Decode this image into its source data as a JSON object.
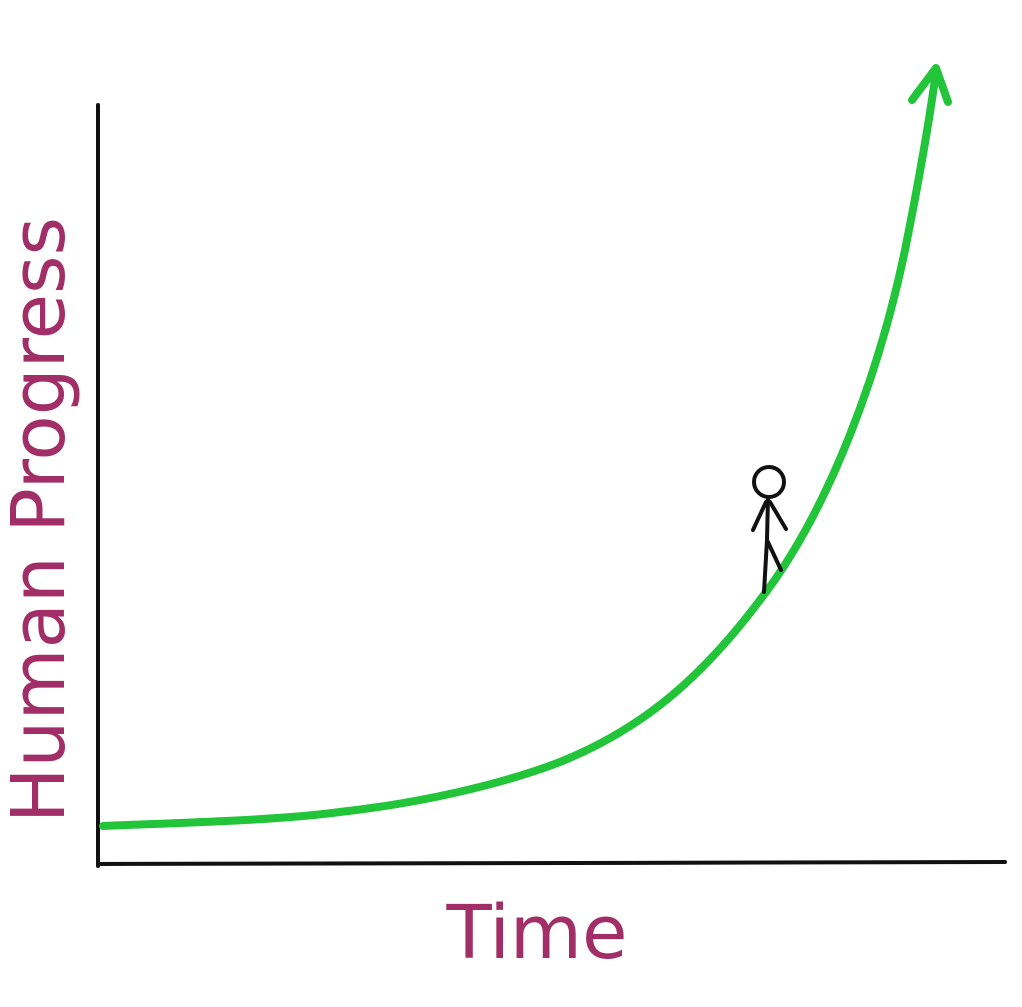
{
  "labels": {
    "x_axis": "Time",
    "y_axis": "Human Progress"
  },
  "colors": {
    "axis": "#111111",
    "curve": "#22c43a",
    "label": "#a12e66",
    "figure": "#111111"
  },
  "icons": {
    "curve_end": "arrowhead-up",
    "figure": "stick-figure"
  },
  "chart_data": {
    "type": "line",
    "title": "",
    "xlabel": "Time",
    "ylabel": "Human Progress",
    "shape": "exponential",
    "tick_labels": false,
    "grid": false,
    "legend": false,
    "annotations": [
      "stick figure standing on curve near the steep part"
    ]
  }
}
